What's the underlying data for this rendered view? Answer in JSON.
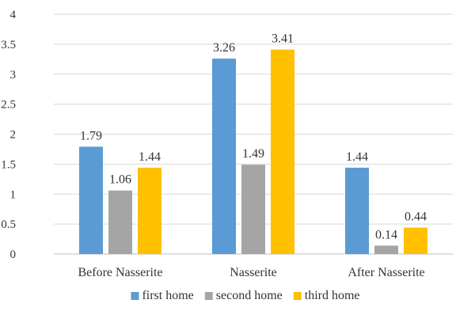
{
  "chart_data": {
    "type": "bar",
    "title": "",
    "xlabel": "",
    "ylabel": "",
    "ylim": [
      0,
      4
    ],
    "yticks": [
      "0",
      "0.5",
      "1",
      "1.5",
      "2",
      "2.5",
      "3",
      "3.5",
      "4"
    ],
    "grid": true,
    "legend_position": "bottom",
    "categories": [
      "Before Nasserite",
      "Nasserite",
      "After Nasserite"
    ],
    "series": [
      {
        "name": "first home",
        "color": "#5B9BD5",
        "values": [
          1.79,
          3.26,
          1.44
        ],
        "labels": [
          "1.79",
          "3.26",
          "1.44"
        ]
      },
      {
        "name": "second home",
        "color": "#A5A5A5",
        "values": [
          1.06,
          1.49,
          0.14
        ],
        "labels": [
          "1.06",
          "1.49",
          "0.14"
        ]
      },
      {
        "name": "third home",
        "color": "#FFC000",
        "values": [
          1.44,
          3.41,
          0.44
        ],
        "labels": [
          "1.44",
          "3.41",
          "0.44"
        ]
      }
    ]
  }
}
